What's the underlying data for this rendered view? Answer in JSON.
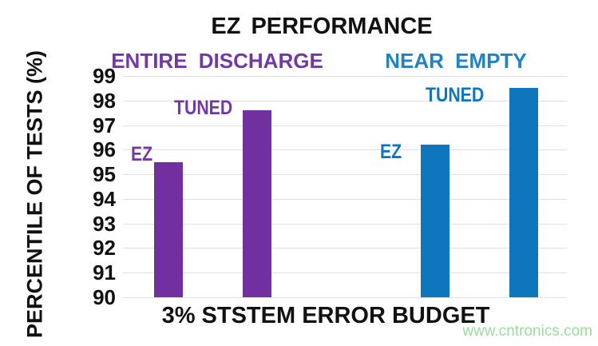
{
  "title": "EZ PERFORMANCE",
  "watermark": "www.cntronics.com",
  "colors": {
    "purple_bar": "#7030A0",
    "purple_text": "#7239A6",
    "blue_bar": "#0E76BC",
    "blue_text": "#2182C4",
    "axis_text": "#111111",
    "gridline": "#E0E0E0",
    "watermark_green": "#9ADC9A",
    "background": "#FFFFFF"
  },
  "chart_data": {
    "type": "bar",
    "title": "EZ PERFORMANCE",
    "xlabel": "3% STSTEM ERROR BUDGET",
    "ylabel": "PERCENTILE OF TESTS (%)",
    "ylim": [
      90,
      99
    ],
    "yticks": [
      99,
      98,
      97,
      96,
      95,
      94,
      93,
      92,
      91,
      90
    ],
    "grid": true,
    "legend_position": "none",
    "groups": [
      {
        "label": "ENTIRE DISCHARGE",
        "color_key": "purple_bar",
        "bars": [
          {
            "label": "EZ",
            "value": 95.5
          },
          {
            "label": "TUNED",
            "value": 97.6
          }
        ]
      },
      {
        "label": "NEAR EMPTY",
        "color_key": "blue_bar",
        "bars": [
          {
            "label": "EZ",
            "value": 96.2
          },
          {
            "label": "TUNED",
            "value": 98.5
          }
        ]
      }
    ]
  }
}
